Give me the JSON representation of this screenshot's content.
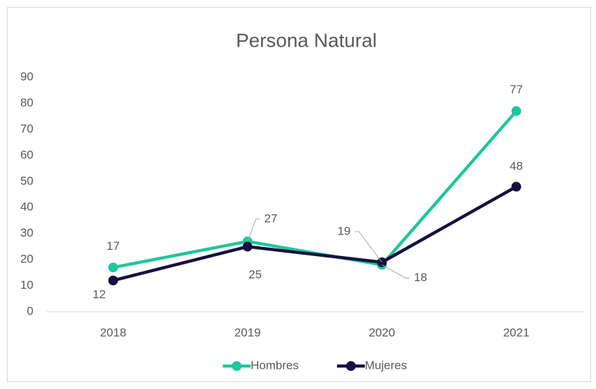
{
  "chart_data": {
    "type": "line",
    "title": "Persona Natural",
    "categories": [
      "2018",
      "2019",
      "2020",
      "2021"
    ],
    "series": [
      {
        "name": "Hombres",
        "color": "#1dc89b",
        "values": [
          17,
          27,
          18,
          77
        ]
      },
      {
        "name": "Mujeres",
        "color": "#16113f",
        "values": [
          12,
          25,
          19,
          48
        ]
      }
    ],
    "ylim": [
      0,
      90
    ],
    "yticks": [
      0,
      10,
      20,
      30,
      40,
      50,
      60,
      70,
      80,
      90
    ],
    "grid": false,
    "legend": "bottom"
  }
}
